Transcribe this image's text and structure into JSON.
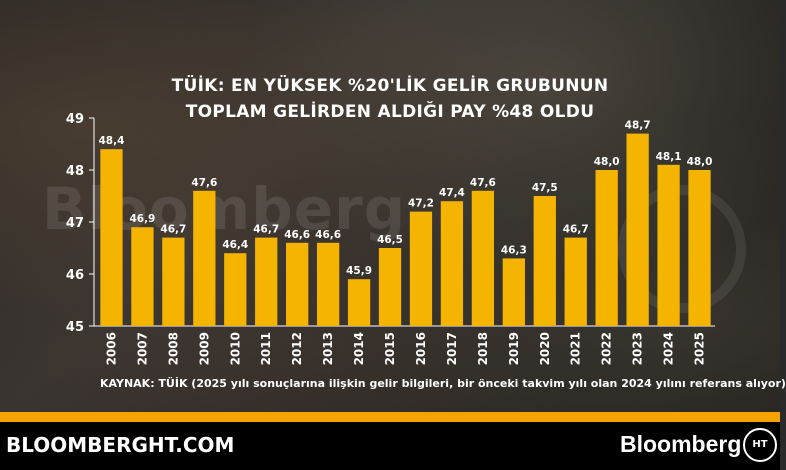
{
  "title_line1": "TÜİK: EN YÜKSEK %20'LİK GELİR GRUBUNUN",
  "title_line2": "TOPLAM GELİRDEN ALDIĞI PAY %48 OLDU",
  "source": "KAYNAK: TÜİK (2025 yılı sonuçlarına ilişkin gelir bilgileri, bir önceki takvim yılı olan 2024 yılını referans alıyor)",
  "watermark": "Bloomberg",
  "footer": {
    "site": "BLOOMBERGHT.COM",
    "brand": "Bloomberg",
    "logo_text": "HT"
  },
  "colors": {
    "bar": "#f5b400",
    "axis": "#ffffff",
    "label": "#ffffff",
    "footer_bg": "#000000",
    "rule": "#f5a300"
  },
  "chart_data": {
    "type": "bar",
    "categories": [
      "2006",
      "2007",
      "2008",
      "2009",
      "2010",
      "2011",
      "2012",
      "2013",
      "2014",
      "2015",
      "2016",
      "2017",
      "2018",
      "2019",
      "2020",
      "2021",
      "2022",
      "2023",
      "2024",
      "2025"
    ],
    "values": [
      48.4,
      46.9,
      46.7,
      47.6,
      46.4,
      46.7,
      46.6,
      46.6,
      45.9,
      46.5,
      47.2,
      47.4,
      47.6,
      46.3,
      47.5,
      46.7,
      48.0,
      48.7,
      48.1,
      48.0
    ],
    "value_labels": [
      "48,4",
      "46,9",
      "46,7",
      "47,6",
      "46,4",
      "46,7",
      "46,6",
      "46,6",
      "45,9",
      "46,5",
      "47,2",
      "47,4",
      "47,6",
      "46,3",
      "47,5",
      "46,7",
      "48,0",
      "48,7",
      "48,1",
      "48,0"
    ],
    "ylim": [
      45,
      49
    ],
    "yticks": [
      45,
      46,
      47,
      48,
      49
    ],
    "xlabel": "",
    "ylabel": "",
    "grid": false
  }
}
